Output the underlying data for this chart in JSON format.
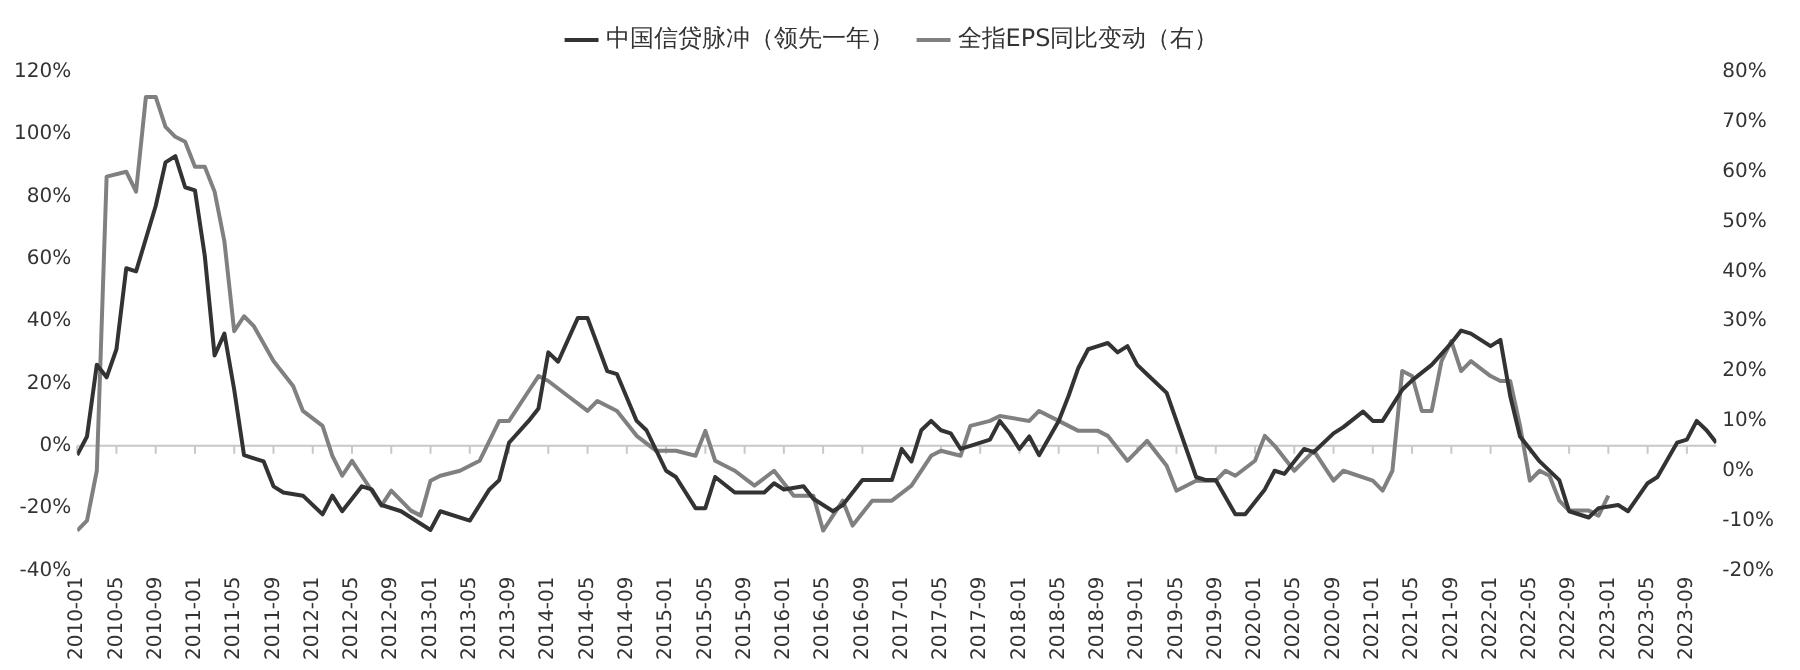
{
  "chart_data": {
    "type": "line",
    "legend": "top",
    "grid": false,
    "marker": "none",
    "line_style": "solid",
    "xlim": [
      "2010-01",
      "2023-12"
    ],
    "xticks": [
      "2010-01",
      "2010-05",
      "2010-09",
      "2011-01",
      "2011-05",
      "2011-09",
      "2012-01",
      "2012-05",
      "2012-09",
      "2013-01",
      "2013-05",
      "2013-09",
      "2014-01",
      "2014-05",
      "2014-09",
      "2015-01",
      "2015-05",
      "2015-09",
      "2016-01",
      "2016-05",
      "2016-09",
      "2017-01",
      "2017-05",
      "2017-09",
      "2018-01",
      "2018-05",
      "2018-09",
      "2019-01",
      "2019-05",
      "2019-09",
      "2020-01",
      "2020-05",
      "2020-09",
      "2021-01",
      "2021-05",
      "2021-09",
      "2022-01",
      "2022-05",
      "2022-09",
      "2023-01",
      "2023-05",
      "2023-09"
    ],
    "ylim": [
      -40,
      120
    ],
    "yticks": [
      {
        "value": -40,
        "label": "-40%"
      },
      {
        "value": -20,
        "label": "-20%"
      },
      {
        "value": 0,
        "label": "0%"
      },
      {
        "value": 20,
        "label": "20%"
      },
      {
        "value": 40,
        "label": "40%"
      },
      {
        "value": 60,
        "label": "60%"
      },
      {
        "value": 80,
        "label": "80%"
      },
      {
        "value": 100,
        "label": "100%"
      },
      {
        "value": 120,
        "label": "120%"
      }
    ],
    "y2lim": [
      -20,
      80
    ],
    "y2ticks": [
      {
        "value": -20,
        "label": "-20%"
      },
      {
        "value": -10,
        "label": "-10%"
      },
      {
        "value": 0,
        "label": "0%"
      },
      {
        "value": 10,
        "label": "10%"
      },
      {
        "value": 20,
        "label": "20%"
      },
      {
        "value": 30,
        "label": "30%"
      },
      {
        "value": 40,
        "label": "40%"
      },
      {
        "value": 50,
        "label": "50%"
      },
      {
        "value": 60,
        "label": "60%"
      },
      {
        "value": 70,
        "label": "70%"
      },
      {
        "value": 80,
        "label": "80%"
      }
    ],
    "ref_lines": [
      {
        "axis": "y",
        "value": 0,
        "color": "#c8c8c8"
      }
    ],
    "series": [
      {
        "name": "中国信贷脉冲（领先一年）",
        "color": "#333333",
        "x": [
          "2010-01",
          "2010-02",
          "2010-03",
          "2010-04",
          "2010-05",
          "2010-06",
          "2010-07",
          "2010-09",
          "2010-10",
          "2010-11",
          "2010-12",
          "2011-01",
          "2011-02",
          "2011-03",
          "2011-04",
          "2011-05",
          "2011-06",
          "2011-07",
          "2011-08",
          "2011-09",
          "2011-10",
          "2011-12",
          "2012-02",
          "2012-03",
          "2012-04",
          "2012-06",
          "2012-07",
          "2012-08",
          "2012-10",
          "2012-11",
          "2013-01",
          "2013-02",
          "2013-05",
          "2013-07",
          "2013-08",
          "2013-09",
          "2013-11",
          "2013-12",
          "2014-01",
          "2014-02",
          "2014-03",
          "2014-04",
          "2014-05",
          "2014-07",
          "2014-08",
          "2014-10",
          "2014-11",
          "2015-01",
          "2015-02",
          "2015-04",
          "2015-05",
          "2015-06",
          "2015-08",
          "2015-11",
          "2015-12",
          "2016-01",
          "2016-03",
          "2016-04",
          "2016-06",
          "2016-07",
          "2016-09",
          "2016-12",
          "2017-01",
          "2017-02",
          "2017-03",
          "2017-04",
          "2017-05",
          "2017-06",
          "2017-07",
          "2017-08",
          "2017-10",
          "2017-11",
          "2017-12",
          "2018-01",
          "2018-02",
          "2018-03",
          "2018-05",
          "2018-06",
          "2018-07",
          "2018-08",
          "2018-09",
          "2018-10",
          "2018-11",
          "2018-12",
          "2019-01",
          "2019-02",
          "2019-04",
          "2019-05",
          "2019-07",
          "2019-08",
          "2019-09",
          "2019-11",
          "2019-12",
          "2020-02",
          "2020-03",
          "2020-04",
          "2020-06",
          "2020-07",
          "2020-09",
          "2020-10",
          "2020-12",
          "2021-01",
          "2021-02",
          "2021-04",
          "2021-05",
          "2021-07",
          "2021-09",
          "2021-10",
          "2021-11",
          "2022-01",
          "2022-02",
          "2022-03",
          "2022-04",
          "2022-06",
          "2022-08",
          "2022-09",
          "2022-11",
          "2022-12",
          "2023-02",
          "2023-03",
          "2023-05",
          "2023-06",
          "2023-08",
          "2023-09",
          "2023-10",
          "2023-11",
          "2023-12"
        ],
        "values": [
          -3,
          3,
          26,
          22,
          31,
          57,
          56,
          77,
          91,
          93,
          83,
          82,
          61,
          29,
          36,
          18,
          -3,
          -4,
          -5,
          -13,
          -15,
          -16,
          -22,
          -16,
          -21,
          -13,
          -14,
          -19,
          -21,
          -23,
          -27,
          -21,
          -24,
          -14,
          -11,
          1,
          8,
          12,
          30,
          27,
          34,
          41,
          41,
          24,
          23,
          8,
          5,
          -8,
          -10,
          -20,
          -20,
          -10,
          -15,
          -15,
          -12,
          -14,
          -13,
          -17,
          -21,
          -19,
          -11,
          -11,
          -1,
          -5,
          5,
          8,
          5,
          4,
          -1,
          0,
          2,
          8,
          4,
          -1,
          3,
          -3,
          8,
          16,
          25,
          31,
          32,
          33,
          30,
          32,
          26,
          23,
          17,
          8,
          -10,
          -11,
          -11,
          -22,
          -22,
          -14,
          -8,
          -9,
          -1,
          -2,
          4,
          6,
          11,
          8,
          8,
          18,
          21,
          26,
          33,
          37,
          36,
          32,
          34,
          16,
          3,
          -5,
          -11,
          -21,
          -23,
          -20,
          -19,
          -21,
          -12,
          -10,
          1,
          2,
          8,
          5,
          1
        ]
      },
      {
        "name": "全指EPS同比变动（右）",
        "color": "#808080",
        "axis": "y2",
        "x": [
          "2010-01",
          "2010-02",
          "2010-03",
          "2010-04",
          "2010-06",
          "2010-07",
          "2010-08",
          "2010-09",
          "2010-10",
          "2010-11",
          "2010-12",
          "2011-01",
          "2011-02",
          "2011-03",
          "2011-04",
          "2011-05",
          "2011-06",
          "2011-07",
          "2011-09",
          "2011-11",
          "2011-12",
          "2012-02",
          "2012-03",
          "2012-04",
          "2012-05",
          "2012-06",
          "2012-08",
          "2012-09",
          "2012-11",
          "2012-12",
          "2013-01",
          "2013-02",
          "2013-04",
          "2013-06",
          "2013-08",
          "2013-09",
          "2013-11",
          "2013-12",
          "2014-01",
          "2014-03",
          "2014-05",
          "2014-06",
          "2014-08",
          "2014-10",
          "2014-12",
          "2015-02",
          "2015-04",
          "2015-05",
          "2015-06",
          "2015-08",
          "2015-10",
          "2015-12",
          "2016-02",
          "2016-04",
          "2016-05",
          "2016-07",
          "2016-08",
          "2016-10",
          "2016-12",
          "2017-02",
          "2017-04",
          "2017-05",
          "2017-07",
          "2017-08",
          "2017-10",
          "2017-11",
          "2018-02",
          "2018-03",
          "2018-05",
          "2018-07",
          "2018-09",
          "2018-10",
          "2018-12",
          "2019-01",
          "2019-02",
          "2019-04",
          "2019-05",
          "2019-06",
          "2019-07",
          "2019-09",
          "2019-10",
          "2019-11",
          "2020-01",
          "2020-02",
          "2020-03",
          "2020-05",
          "2020-07",
          "2020-09",
          "2020-10",
          "2021-01",
          "2021-02",
          "2021-03",
          "2021-04",
          "2021-05",
          "2021-06",
          "2021-07",
          "2021-08",
          "2021-09",
          "2021-10",
          "2021-11",
          "2022-01",
          "2022-02",
          "2022-03",
          "2022-04",
          "2022-05",
          "2022-06",
          "2022-07",
          "2022-08",
          "2022-09",
          "2022-11",
          "2022-12",
          "2023-01"
        ],
        "values": [
          -12,
          -10,
          0,
          59,
          60,
          56,
          75,
          75,
          69,
          67,
          66,
          61,
          61,
          56,
          46,
          28,
          31,
          29,
          22,
          17,
          12,
          9,
          3,
          -1,
          2,
          -1,
          -7,
          -4,
          -8,
          -9,
          -2,
          -1,
          0,
          2,
          10,
          10,
          16,
          19,
          18,
          15,
          12,
          14,
          12,
          7,
          4,
          4,
          3,
          8,
          2,
          0,
          -3,
          0,
          -5,
          -5,
          -12,
          -6,
          -11,
          -6,
          -6,
          -3,
          3,
          4,
          3,
          9,
          10,
          11,
          10,
          12,
          10,
          8,
          8,
          7,
          2,
          4,
          6,
          1,
          -4,
          -3,
          -2,
          -2,
          0,
          -1,
          2,
          7,
          5,
          0,
          4,
          -2,
          0,
          -2,
          -4,
          0,
          20,
          19,
          12,
          12,
          22,
          26,
          20,
          22,
          19,
          18,
          18,
          9,
          -2,
          0,
          -1,
          -6,
          -8,
          -8,
          -9,
          -5
        ]
      }
    ]
  }
}
